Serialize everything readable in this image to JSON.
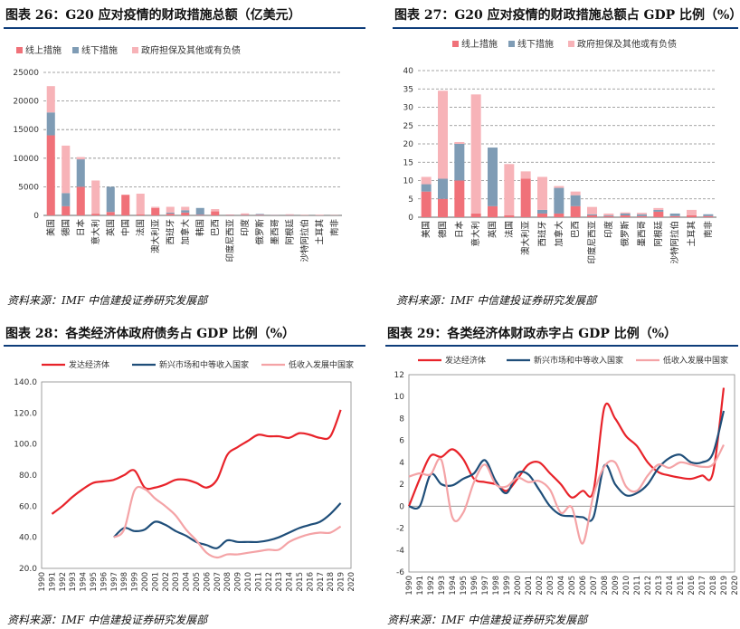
{
  "panels": [
    {
      "title": "图表 26：G20 应对疫情的财政措施总额（亿美元）"
    },
    {
      "title": "图表 27：G20 应对疫情的财政措施总额占 GDP 比例（%）"
    },
    {
      "title": "图表 28：各类经济体政府债务占 GDP 比例（%）"
    },
    {
      "title": "图表 29：各类经济体财政赤字占 GDP 比例（%）"
    }
  ],
  "sources": [
    "资料来源：IMF    中信建投证券研究发展部",
    "资料来源：IMF    中信建投证券研究发展部",
    "资料来源：IMF    中信建投证券研究发展部",
    "资料来源：IMF    中信建投证券研究发展部"
  ],
  "colors": {
    "above": "#f07179",
    "below": "#7f9cb5",
    "guarantee": "#f7b3b8",
    "dev": "#e8232a",
    "emerg": "#1f4e79",
    "low": "#f4a3a6",
    "title_rule": "#0e3d7a"
  },
  "chart_data": [
    {
      "type": "bar",
      "stacked": true,
      "categories": [
        "美国",
        "德国",
        "日本",
        "意大利",
        "英国",
        "中国",
        "法国",
        "澳大利亚",
        "西班牙",
        "加拿大",
        "韩国",
        "巴西",
        "印度尼西亚",
        "印度",
        "俄罗斯",
        "墨西哥",
        "阿根廷",
        "沙特阿拉伯",
        "土耳其",
        "南非"
      ],
      "series": [
        {
          "name": "线上措施",
          "values": [
            14000,
            1600,
            5000,
            300,
            600,
            3600,
            200,
            1300,
            300,
            500,
            100,
            700,
            100,
            100,
            100,
            50,
            50,
            50,
            50,
            30
          ]
        },
        {
          "name": "线下措施",
          "values": [
            4000,
            2300,
            4800,
            0,
            4400,
            0,
            0,
            0,
            200,
            400,
            1200,
            0,
            50,
            50,
            150,
            50,
            50,
            0,
            0,
            0
          ]
        },
        {
          "name": "政府担保及其他或有负债",
          "values": [
            4600,
            8300,
            400,
            5800,
            0,
            0,
            3600,
            200,
            1000,
            600,
            0,
            400,
            0,
            200,
            0,
            0,
            100,
            0,
            50,
            0
          ]
        }
      ],
      "ylim": [
        0,
        25000
      ],
      "yticks": [
        0,
        5000,
        10000,
        15000,
        20000,
        25000
      ]
    },
    {
      "type": "bar",
      "stacked": true,
      "categories": [
        "美国",
        "德国",
        "日本",
        "意大利",
        "英国",
        "法国",
        "澳大利亚",
        "西班牙",
        "加拿大",
        "巴西",
        "印度尼西亚",
        "印度",
        "俄罗斯",
        "墨西哥",
        "阿根廷",
        "沙特阿拉伯",
        "土耳其",
        "南非"
      ],
      "series": [
        {
          "name": "线上措施",
          "values": [
            7,
            5,
            10,
            1,
            3,
            0.5,
            10.5,
            1,
            1,
            3,
            0.5,
            0.3,
            0.5,
            0.3,
            1.5,
            0.3,
            0.5,
            0.3
          ]
        },
        {
          "name": "线下措施",
          "values": [
            2,
            5.5,
            10,
            0,
            16,
            0,
            0,
            1,
            7,
            3,
            0.3,
            0.2,
            0.5,
            0.5,
            0.5,
            0.7,
            0,
            0.5
          ]
        },
        {
          "name": "政府担保及其他或有负债",
          "values": [
            2,
            24,
            0.5,
            32.5,
            0,
            14,
            2,
            9,
            0.5,
            1,
            2,
            0.5,
            0.3,
            0.4,
            0.5,
            0,
            1.5,
            0
          ]
        }
      ],
      "ylim": [
        0,
        40
      ],
      "yticks": [
        0,
        5,
        10,
        15,
        20,
        25,
        30,
        35,
        40
      ]
    },
    {
      "type": "line",
      "x": [
        1990,
        1991,
        1992,
        1993,
        1994,
        1995,
        1996,
        1997,
        1998,
        1999,
        2000,
        2001,
        2002,
        2003,
        2004,
        2005,
        2006,
        2007,
        2008,
        2009,
        2010,
        2011,
        2012,
        2013,
        2014,
        2015,
        2016,
        2017,
        2018,
        2019,
        2020
      ],
      "series": [
        {
          "name": "发达经济体",
          "values": [
            null,
            55,
            60,
            66,
            71,
            75,
            76,
            77,
            80,
            83,
            72,
            72,
            74,
            77,
            77,
            75,
            72,
            77,
            93,
            98,
            102,
            106,
            105,
            105,
            104,
            107,
            106,
            104,
            105,
            122,
            null
          ]
        },
        {
          "name": "新兴市场和中等收入国家",
          "values": [
            null,
            null,
            null,
            null,
            null,
            null,
            null,
            40,
            46,
            44,
            45,
            50,
            48,
            44,
            41,
            37,
            35,
            33,
            38,
            37,
            37,
            37,
            38,
            40,
            43,
            46,
            48,
            50,
            55,
            62,
            null
          ]
        },
        {
          "name": "低收入发展中国家",
          "values": [
            null,
            null,
            null,
            null,
            null,
            null,
            null,
            40,
            45,
            70,
            71,
            65,
            60,
            54,
            45,
            38,
            30,
            27,
            29,
            29,
            30,
            31,
            32,
            32,
            37,
            40,
            42,
            43,
            43,
            47,
            null
          ]
        }
      ],
      "ylim": [
        20,
        140
      ],
      "yticks": [
        20,
        40,
        60,
        80,
        100,
        120,
        140
      ]
    },
    {
      "type": "line",
      "x": [
        1990,
        1991,
        1992,
        1993,
        1994,
        1995,
        1996,
        1997,
        1998,
        1999,
        2000,
        2001,
        2002,
        2003,
        2004,
        2005,
        2006,
        2007,
        2008,
        2009,
        2010,
        2011,
        2012,
        2013,
        2014,
        2015,
        2016,
        2017,
        2018,
        2019,
        2020
      ],
      "series": [
        {
          "name": "发达经济体",
          "values": [
            0,
            2.5,
            4.6,
            4.5,
            5.2,
            4.3,
            2.5,
            2.2,
            2.0,
            1.4,
            2.5,
            3.8,
            4.0,
            3.0,
            2.0,
            0.8,
            1.4,
            1.4,
            9.0,
            8.0,
            6.4,
            5.5,
            4.0,
            3.1,
            2.8,
            2.6,
            2.5,
            2.8,
            3.0,
            10.8,
            null
          ]
        },
        {
          "name": "新兴市场和中等收入国家",
          "values": [
            0,
            0.0,
            2.9,
            2.0,
            1.9,
            2.5,
            3.0,
            4.2,
            2.3,
            1.2,
            3.0,
            2.9,
            1.5,
            0.0,
            -0.8,
            -0.9,
            -1.0,
            -1.0,
            3.7,
            2.0,
            1.0,
            1.2,
            2.0,
            3.5,
            4.4,
            4.7,
            4.0,
            4.0,
            4.8,
            8.7,
            null
          ]
        },
        {
          "name": "低收入发展中国家",
          "values": [
            2.7,
            3.0,
            2.9,
            4.2,
            -1.0,
            -0.6,
            2.2,
            3.8,
            2.0,
            1.8,
            2.6,
            2.2,
            2.3,
            1.5,
            -0.6,
            -0.1,
            -3.4,
            1.0,
            3.6,
            4.0,
            1.8,
            1.4,
            2.8,
            3.8,
            3.5,
            4.0,
            3.8,
            3.6,
            3.8,
            5.6,
            null
          ]
        }
      ],
      "ylim": [
        -6,
        12
      ],
      "yticks": [
        -6,
        -4,
        -2,
        0,
        2,
        4,
        6,
        8,
        10,
        12
      ]
    }
  ]
}
